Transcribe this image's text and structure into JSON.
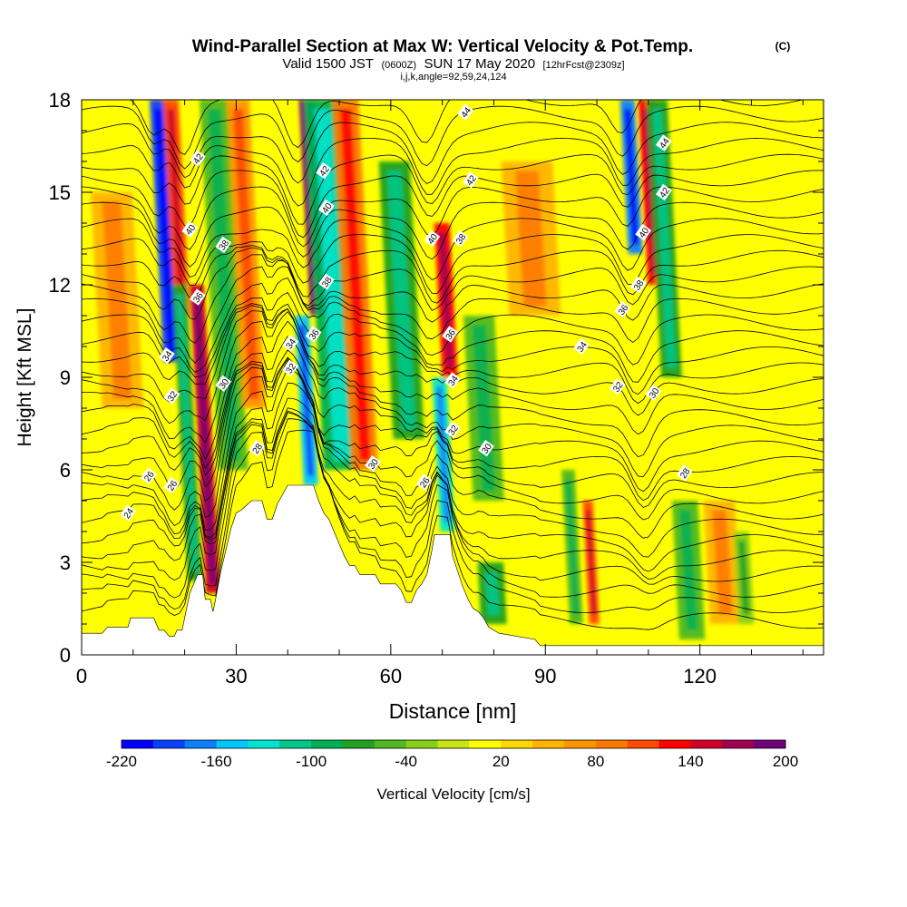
{
  "title": {
    "main": "Wind-Parallel Section at Max W: Vertical Velocity & Pot.Temp.",
    "main_tag": "(C)",
    "valid_prefix": "Valid 1500 JST",
    "valid_utc": "(0600Z)",
    "valid_date": "SUN 17 May 2020",
    "valid_fcst": "[12hrFcst@2309z]",
    "params": "i,j,k,angle=92,59,24,124"
  },
  "chart_data": {
    "type": "heatmap",
    "xlabel": "Distance [nm]",
    "ylabel": "Height [Kft MSL]",
    "xlim": [
      0,
      144
    ],
    "ylim": [
      0,
      18
    ],
    "x_ticks": [
      0,
      30,
      60,
      90,
      120
    ],
    "y_ticks": [
      0,
      3,
      6,
      9,
      12,
      15,
      18
    ],
    "grid": false,
    "colorbar": {
      "title": "Vertical Velocity [cm/s]",
      "min": -220,
      "max": 200,
      "step": 20,
      "tick_labels": [
        -220,
        -160,
        -100,
        -40,
        20,
        80,
        140,
        200
      ],
      "colors": [
        "#0000ff",
        "#0a3fff",
        "#0a7fff",
        "#00c8ff",
        "#00e5d0",
        "#00c88c",
        "#00b050",
        "#20a020",
        "#50b820",
        "#86d016",
        "#c8e614",
        "#ffff00",
        "#ffd800",
        "#ffb400",
        "#ff9600",
        "#ff7800",
        "#ff4800",
        "#ff0000",
        "#d20028",
        "#a00050",
        "#6e0078"
      ]
    },
    "background_velocity_cm_s": 10,
    "velocity_bands": [
      {
        "x": 17.5,
        "half_width": 1.6,
        "w": -200,
        "y_from": 9.5,
        "y_to": 18
      },
      {
        "x": 19.5,
        "half_width": 1.5,
        "w": 110,
        "y_from": 11,
        "y_to": 18
      },
      {
        "x": 22.0,
        "half_width": 1.4,
        "w": -70,
        "y_from": 2,
        "y_to": 12
      },
      {
        "x": 25.5,
        "half_width": 1.4,
        "w": 140,
        "y_from": 2,
        "y_to": 12
      },
      {
        "x": 29.5,
        "half_width": 2.8,
        "w": -60,
        "y_from": 6,
        "y_to": 18
      },
      {
        "x": 33.5,
        "half_width": 2.2,
        "w": 60,
        "y_from": 8,
        "y_to": 18
      },
      {
        "x": 44.5,
        "half_width": 1.4,
        "w": -150,
        "y_from": 5.5,
        "y_to": 11
      },
      {
        "x": 46.0,
        "half_width": 1.6,
        "w": 180,
        "y_from": 11,
        "y_to": 18
      },
      {
        "x": 50.5,
        "half_width": 3.5,
        "w": -90,
        "y_from": 6,
        "y_to": 18
      },
      {
        "x": 55.0,
        "half_width": 2.5,
        "w": 80,
        "y_from": 6,
        "y_to": 18
      },
      {
        "x": 63.5,
        "half_width": 3.0,
        "w": -80,
        "y_from": 7,
        "y_to": 16
      },
      {
        "x": 71.5,
        "half_width": 1.5,
        "w": 130,
        "y_from": 9,
        "y_to": 14
      },
      {
        "x": 71.0,
        "half_width": 1.4,
        "w": -130,
        "y_from": 4,
        "y_to": 9
      },
      {
        "x": 79.0,
        "half_width": 3.0,
        "w": -60,
        "y_from": 5,
        "y_to": 11
      },
      {
        "x": 80.0,
        "half_width": 2.5,
        "w": -70,
        "y_from": 1,
        "y_to": 3
      },
      {
        "x": 99.5,
        "half_width": 1.0,
        "w": 110,
        "y_from": 1,
        "y_to": 5
      },
      {
        "x": 96.0,
        "half_width": 1.3,
        "w": -50,
        "y_from": 1,
        "y_to": 6
      },
      {
        "x": 107.5,
        "half_width": 1.4,
        "w": -170,
        "y_from": 13,
        "y_to": 18
      },
      {
        "x": 111.5,
        "half_width": 1.6,
        "w": 130,
        "y_from": 12,
        "y_to": 18
      },
      {
        "x": 114.5,
        "half_width": 2.0,
        "w": -70,
        "y_from": 9,
        "y_to": 18
      },
      {
        "x": 118.5,
        "half_width": 2.5,
        "w": -50,
        "y_from": 0.5,
        "y_to": 5
      },
      {
        "x": 125.0,
        "half_width": 3.0,
        "w": 40,
        "y_from": 1,
        "y_to": 5
      },
      {
        "x": 129.0,
        "half_width": 1.5,
        "w": -40,
        "y_from": 1,
        "y_to": 4
      },
      {
        "x": 8.0,
        "half_width": 4.0,
        "w": 40,
        "y_from": 8,
        "y_to": 15
      },
      {
        "x": 88.0,
        "half_width": 5.0,
        "w": 40,
        "y_from": 11,
        "y_to": 16
      }
    ],
    "terrain": [
      [
        0,
        0.7
      ],
      [
        4,
        0.7
      ],
      [
        5,
        0.9
      ],
      [
        9,
        0.9
      ],
      [
        9.5,
        1.2
      ],
      [
        14,
        1.2
      ],
      [
        15,
        0.8
      ],
      [
        16,
        0.8
      ],
      [
        17,
        0.6
      ],
      [
        18,
        0.6
      ],
      [
        18.5,
        0.8
      ],
      [
        19.5,
        0.8
      ],
      [
        20,
        1.2
      ],
      [
        20.5,
        1.6
      ],
      [
        21,
        2.0
      ],
      [
        22,
        2.4
      ],
      [
        22.5,
        2.6
      ],
      [
        23.5,
        2.6
      ],
      [
        24,
        1.8
      ],
      [
        25,
        1.8
      ],
      [
        25.5,
        1.4
      ],
      [
        26,
        1.8
      ],
      [
        27,
        2.7
      ],
      [
        28,
        3.4
      ],
      [
        29,
        4.1
      ],
      [
        30,
        4.6
      ],
      [
        31,
        4.7
      ],
      [
        33,
        5.0
      ],
      [
        35,
        5.0
      ],
      [
        36,
        4.4
      ],
      [
        37,
        4.4
      ],
      [
        38,
        4.9
      ],
      [
        40,
        5.5
      ],
      [
        45,
        5.5
      ],
      [
        46,
        5.0
      ],
      [
        47,
        4.6
      ],
      [
        48,
        4.4
      ],
      [
        49,
        4.0
      ],
      [
        50,
        3.6
      ],
      [
        51,
        3.2
      ],
      [
        52,
        2.9
      ],
      [
        53,
        2.9
      ],
      [
        54,
        2.6
      ],
      [
        57,
        2.6
      ],
      [
        58,
        2.3
      ],
      [
        61,
        2.3
      ],
      [
        62,
        2.1
      ],
      [
        63,
        1.7
      ],
      [
        64,
        1.7
      ],
      [
        65,
        2.1
      ],
      [
        66,
        2.3
      ],
      [
        67,
        2.6
      ],
      [
        68,
        3.4
      ],
      [
        68.5,
        3.9
      ],
      [
        71.5,
        3.9
      ],
      [
        72,
        3.2
      ],
      [
        73,
        2.7
      ],
      [
        74,
        2.2
      ],
      [
        75,
        1.8
      ],
      [
        76,
        1.5
      ],
      [
        77,
        1.4
      ],
      [
        78,
        1.2
      ],
      [
        79,
        0.9
      ],
      [
        81,
        0.7
      ],
      [
        88,
        0.5
      ],
      [
        89,
        0.3
      ],
      [
        144,
        0.3
      ]
    ],
    "theta_labels": [
      {
        "text": "24",
        "x": 9,
        "y": 4.6
      },
      {
        "text": "26",
        "x": 13,
        "y": 5.8
      },
      {
        "text": "26",
        "x": 17.5,
        "y": 5.5
      },
      {
        "text": "32",
        "x": 17.5,
        "y": 8.4
      },
      {
        "text": "34",
        "x": 16.5,
        "y": 9.7
      },
      {
        "text": "36",
        "x": 22.5,
        "y": 11.6
      },
      {
        "text": "38",
        "x": 27.5,
        "y": 13.3
      },
      {
        "text": "40",
        "x": 21,
        "y": 13.8
      },
      {
        "text": "42",
        "x": 22.5,
        "y": 16.1
      },
      {
        "text": "30",
        "x": 27.5,
        "y": 8.8
      },
      {
        "text": "28",
        "x": 34,
        "y": 6.7
      },
      {
        "text": "32",
        "x": 40.5,
        "y": 9.3
      },
      {
        "text": "34",
        "x": 40.5,
        "y": 10.1
      },
      {
        "text": "36",
        "x": 45,
        "y": 10.4
      },
      {
        "text": "38",
        "x": 47.5,
        "y": 12.1
      },
      {
        "text": "40",
        "x": 47.5,
        "y": 14.5
      },
      {
        "text": "42",
        "x": 47,
        "y": 15.7
      },
      {
        "text": "30",
        "x": 56.5,
        "y": 6.2
      },
      {
        "text": "26",
        "x": 66.5,
        "y": 5.6
      },
      {
        "text": "32",
        "x": 72,
        "y": 7.3
      },
      {
        "text": "34",
        "x": 72,
        "y": 8.9
      },
      {
        "text": "36",
        "x": 71.5,
        "y": 10.4
      },
      {
        "text": "30",
        "x": 78.5,
        "y": 6.7
      },
      {
        "text": "40",
        "x": 68,
        "y": 13.5
      },
      {
        "text": "38",
        "x": 73.5,
        "y": 13.5
      },
      {
        "text": "42",
        "x": 75.5,
        "y": 15.4
      },
      {
        "text": "44",
        "x": 74.5,
        "y": 17.6
      },
      {
        "text": "34",
        "x": 97,
        "y": 10
      },
      {
        "text": "36",
        "x": 105,
        "y": 11.2
      },
      {
        "text": "38",
        "x": 108,
        "y": 12
      },
      {
        "text": "40",
        "x": 109,
        "y": 13.7
      },
      {
        "text": "42",
        "x": 113,
        "y": 15
      },
      {
        "text": "44",
        "x": 113,
        "y": 16.6
      },
      {
        "text": "32",
        "x": 104,
        "y": 8.7
      },
      {
        "text": "30",
        "x": 111,
        "y": 8.5
      },
      {
        "text": "28",
        "x": 117,
        "y": 5.9
      }
    ]
  }
}
